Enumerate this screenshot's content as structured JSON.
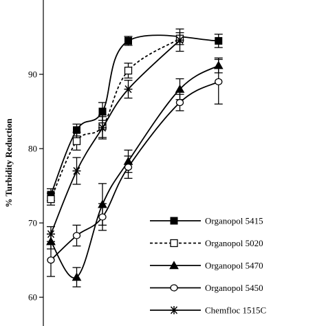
{
  "chart_data": {
    "type": "line",
    "title": "",
    "xlabel": "",
    "ylabel": "% Turbidity Reduction",
    "ylim": [
      56.5,
      100
    ],
    "yticks": [
      60,
      70,
      80,
      90
    ],
    "grid": false,
    "legend_position": "bottom-right",
    "x": [
      1,
      2,
      3,
      4,
      5,
      6,
      7,
      8
    ],
    "series": [
      {
        "name": "Organopol 5415",
        "marker": "filled-square",
        "line": "solid",
        "color": "#000000",
        "points": [
          {
            "x": 1.0,
            "y": 73.8,
            "err": 0.8
          },
          {
            "x": 2.0,
            "y": 82.5,
            "err": 0.8
          },
          {
            "x": 3.0,
            "y": 85.0,
            "err": 1.2
          },
          {
            "x": 4.0,
            "y": 94.5,
            "err": 0.6
          },
          {
            "x": 7.5,
            "y": 94.5,
            "err": 0.9
          }
        ]
      },
      {
        "name": "Organopol 5020",
        "marker": "open-square",
        "line": "dotted",
        "color": "#000000",
        "points": [
          {
            "x": 1.0,
            "y": 73.2,
            "err": 0.8
          },
          {
            "x": 2.0,
            "y": 81.0,
            "err": 1.2
          },
          {
            "x": 3.0,
            "y": 83.0,
            "err": 1.5
          },
          {
            "x": 4.0,
            "y": 90.5,
            "err": 1.0
          },
          {
            "x": 6.0,
            "y": 94.8,
            "err": 0.8
          }
        ]
      },
      {
        "name": "Organopol 5470",
        "marker": "filled-triangle",
        "line": "solid",
        "color": "#000000",
        "points": [
          {
            "x": 1.0,
            "y": 67.5,
            "err": 1.0
          },
          {
            "x": 2.0,
            "y": 62.7,
            "err": 1.3
          },
          {
            "x": 3.0,
            "y": 72.5,
            "err": 2.8
          },
          {
            "x": 4.0,
            "y": 78.3,
            "err": 1.5
          },
          {
            "x": 6.0,
            "y": 88.0,
            "err": 1.4
          },
          {
            "x": 7.5,
            "y": 91.2,
            "err": 1.0
          }
        ]
      },
      {
        "name": "Organopol 5450",
        "marker": "open-circle",
        "line": "solid",
        "color": "#000000",
        "points": [
          {
            "x": 1.0,
            "y": 65.0,
            "err": 2.2
          },
          {
            "x": 2.0,
            "y": 68.3,
            "err": 1.4
          },
          {
            "x": 3.0,
            "y": 70.8,
            "err": 1.8
          },
          {
            "x": 4.0,
            "y": 77.5,
            "err": 1.5
          },
          {
            "x": 6.0,
            "y": 86.2,
            "err": 1.1
          },
          {
            "x": 7.5,
            "y": 89.0,
            "err": 3.0
          }
        ]
      },
      {
        "name": "Chemfloc 1515C",
        "marker": "star",
        "line": "solid",
        "color": "#000000",
        "points": [
          {
            "x": 1.0,
            "y": 68.5,
            "err": 1.0
          },
          {
            "x": 2.0,
            "y": 77.0,
            "err": 1.8
          },
          {
            "x": 3.0,
            "y": 82.8,
            "err": 1.5
          },
          {
            "x": 4.0,
            "y": 88.0,
            "err": 1.2
          },
          {
            "x": 6.0,
            "y": 94.6,
            "err": 1.5
          }
        ]
      }
    ]
  }
}
